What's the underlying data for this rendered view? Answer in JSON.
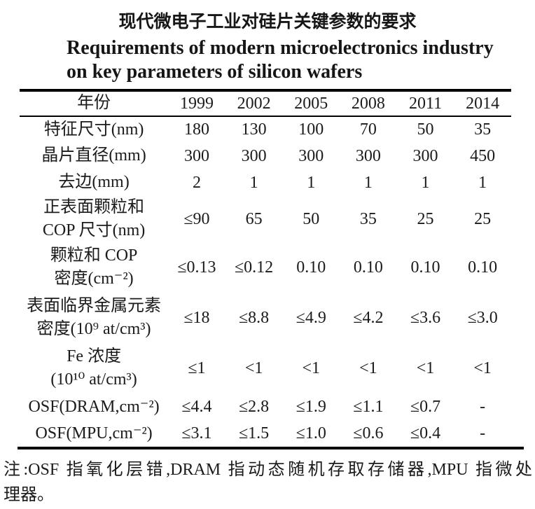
{
  "title_zh": "现代微电子工业对硅片关键参数的要求",
  "title_en": {
    "line1": "Requirements of modern microelectronics industry",
    "line2": "on key parameters of silicon wafers"
  },
  "table": {
    "header": {
      "label": "年份",
      "years": [
        "1999",
        "2002",
        "2005",
        "2008",
        "2011",
        "2014"
      ]
    },
    "rows": [
      {
        "label": "特征尺寸(nm)",
        "values": [
          "180",
          "130",
          "100",
          "70",
          "50",
          "35"
        ]
      },
      {
        "label": "晶片直径(mm)",
        "values": [
          "300",
          "300",
          "300",
          "300",
          "300",
          "450"
        ]
      },
      {
        "label": "去边(mm)",
        "values": [
          "2",
          "1",
          "1",
          "1",
          "1",
          "1"
        ]
      },
      {
        "label": "正表面颗粒和\nCOP 尺寸(nm)",
        "values": [
          "≤90",
          "65",
          "50",
          "35",
          "25",
          "25"
        ]
      },
      {
        "label": "颗粒和 COP\n密度(cm⁻²)",
        "values": [
          "≤0.13",
          "≤0.12",
          "0.10",
          "0.10",
          "0.10",
          "0.10"
        ]
      },
      {
        "label": "表面临界金属元素\n密度(10⁹ at/cm³)",
        "values": [
          "≤18",
          "≤8.8",
          "≤4.9",
          "≤4.2",
          "≤3.6",
          "≤3.0"
        ]
      },
      {
        "label": "Fe 浓度\n(10¹⁰ at/cm³)",
        "values": [
          "≤1",
          "<1",
          "<1",
          "<1",
          "<1",
          "<1"
        ]
      },
      {
        "label": "OSF(DRAM,cm⁻²)",
        "values": [
          "≤4.4",
          "≤2.8",
          "≤1.9",
          "≤1.1",
          "≤0.7",
          "-"
        ]
      },
      {
        "label": "OSF(MPU,cm⁻²)",
        "values": [
          "≤3.1",
          "≤1.5",
          "≤1.0",
          "≤0.6",
          "≤0.4",
          "-"
        ]
      }
    ]
  },
  "note": {
    "line1": "注:OSF 指氧化层错,DRAM 指动态随机存取存储器,MPU 指微处",
    "line2": "理器。"
  },
  "colors": {
    "ink": "#1b1b1b",
    "rule": "#000000",
    "background": "#ffffff"
  }
}
